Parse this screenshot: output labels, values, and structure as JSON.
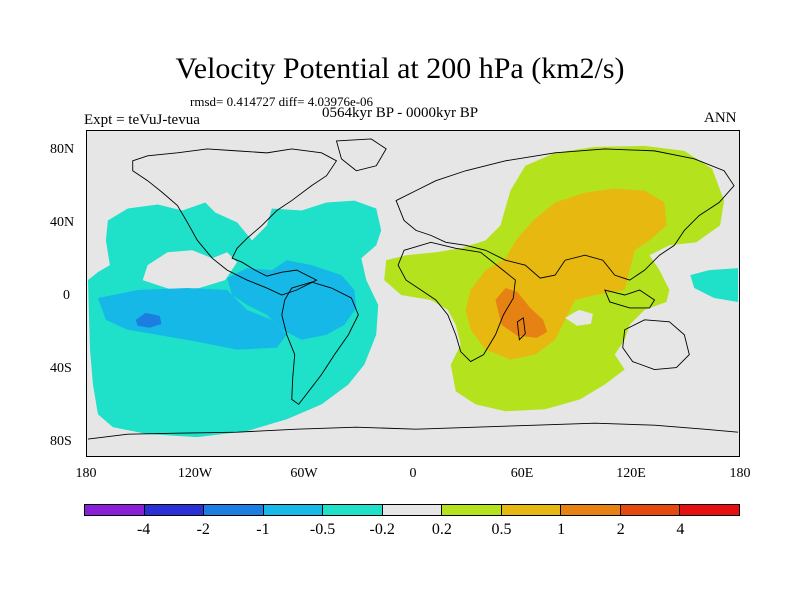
{
  "title": "Velocity Potential at 200 hPa (km2/s)",
  "stats": "rmsd= 0.414727 diff= 4.03976e-06",
  "experiment": "Expt = teVuJ-tevua",
  "period": "0564kyr BP - 0000kyr BP",
  "season": "ANN",
  "lat_ticks": [
    "80N",
    "40N",
    "0",
    "40S",
    "80S"
  ],
  "lon_ticks": [
    "180",
    "120W",
    "60W",
    "0",
    "60E",
    "120E",
    "180"
  ],
  "colorbar": {
    "colors": [
      "#8a1fd8",
      "#2b2fd6",
      "#1b7ee0",
      "#15b8e6",
      "#1fe0c8",
      "#e6e6e6",
      "#b4e31e",
      "#e7b80f",
      "#e68214",
      "#e64811",
      "#e61010"
    ],
    "labels": [
      "-4",
      "-2",
      "-1",
      "-0.5",
      "-0.2",
      "0.2",
      "0.5",
      "1",
      "2",
      "4"
    ]
  }
}
